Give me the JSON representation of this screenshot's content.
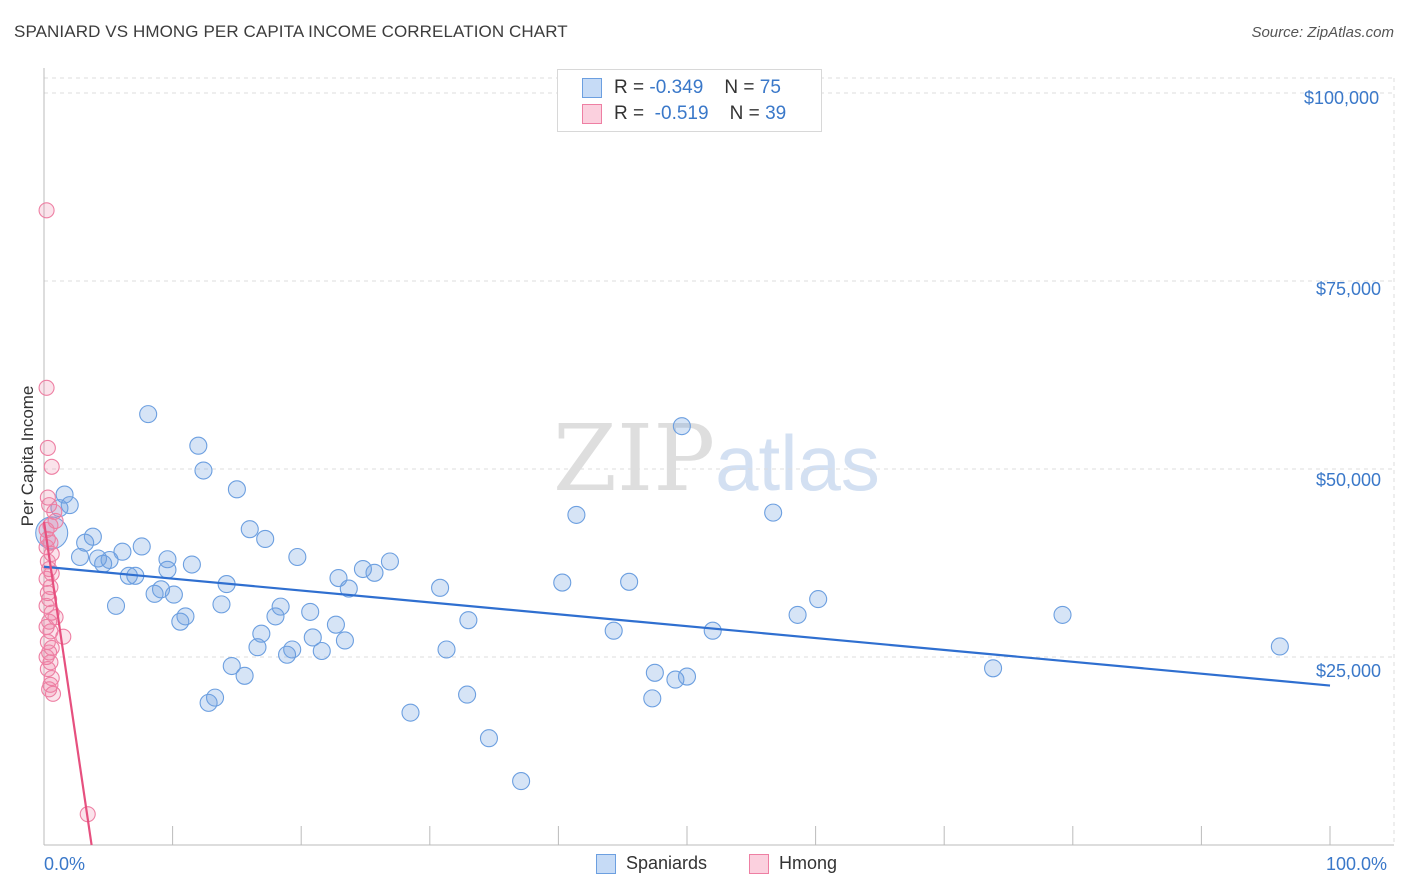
{
  "title": "SPANIARD VS HMONG PER CAPITA INCOME CORRELATION CHART",
  "source": "Source: ZipAtlas.com",
  "watermark": {
    "zip": "ZIP",
    "atlas": "atlas"
  },
  "legend_top": [
    {
      "r_label": "R =",
      "r_value": "-0.349",
      "n_label": "N =",
      "n_value": "75",
      "color": "#a9c8f0"
    },
    {
      "r_label": "R =",
      "r_value": "-0.519",
      "n_label": "N =",
      "n_value": "39",
      "color": "#f7b9cd"
    }
  ],
  "colors": {
    "spaniards": "#6c9fe0",
    "spaniards_line": "#2f6fd0",
    "hmong": "#ee7fa3",
    "hmong_line": "#e6507f",
    "axis_text": "#3a78c9",
    "grid": "#dddddd"
  },
  "chart_data": {
    "type": "scatter",
    "title": "SPANIARD VS HMONG PER CAPITA INCOME CORRELATION CHART",
    "xlabel": "",
    "ylabel": "Per Capita Income",
    "x_tick_labels": [
      "0.0%",
      "100.0%"
    ],
    "y_tick_labels": [
      "$25,000",
      "$50,000",
      "$75,000",
      "$100,000"
    ],
    "y_ticks": [
      25000,
      50000,
      75000,
      100000
    ],
    "xlim": [
      0,
      100
    ],
    "ylim": [
      0,
      102000
    ],
    "grid": true,
    "legend_position": "bottom",
    "series": [
      {
        "name": "Spaniards",
        "color": "#6c9fe0",
        "r": -0.349,
        "n": 75,
        "trend": {
          "x": [
            0,
            100
          ],
          "y": [
            37000,
            21200
          ]
        },
        "points": [
          [
            0.6,
            41500
          ],
          [
            1.2,
            44800
          ],
          [
            2.0,
            45200
          ],
          [
            2.8,
            38300
          ],
          [
            3.2,
            40200
          ],
          [
            3.8,
            41000
          ],
          [
            4.2,
            38100
          ],
          [
            4.6,
            37400
          ],
          [
            5.1,
            37900
          ],
          [
            5.6,
            31800
          ],
          [
            6.1,
            39000
          ],
          [
            6.6,
            35800
          ],
          [
            7.1,
            35800
          ],
          [
            7.6,
            39700
          ],
          [
            8.1,
            57300
          ],
          [
            8.6,
            33400
          ],
          [
            9.1,
            34000
          ],
          [
            9.6,
            38000
          ],
          [
            10.1,
            33300
          ],
          [
            10.6,
            29700
          ],
          [
            11.0,
            30400
          ],
          [
            11.5,
            37300
          ],
          [
            12.0,
            53100
          ],
          [
            12.4,
            49800
          ],
          [
            12.8,
            18900
          ],
          [
            13.3,
            19600
          ],
          [
            13.8,
            32000
          ],
          [
            14.2,
            34700
          ],
          [
            14.6,
            23800
          ],
          [
            15.0,
            47300
          ],
          [
            15.6,
            22500
          ],
          [
            16.0,
            42000
          ],
          [
            16.6,
            26300
          ],
          [
            16.9,
            28100
          ],
          [
            17.2,
            40700
          ],
          [
            18.0,
            30400
          ],
          [
            18.4,
            31700
          ],
          [
            18.9,
            25300
          ],
          [
            19.3,
            26000
          ],
          [
            19.7,
            38300
          ],
          [
            20.7,
            31000
          ],
          [
            20.9,
            27600
          ],
          [
            21.6,
            25800
          ],
          [
            22.7,
            29300
          ],
          [
            22.9,
            35500
          ],
          [
            23.4,
            27200
          ],
          [
            23.7,
            34100
          ],
          [
            24.8,
            36700
          ],
          [
            25.7,
            36200
          ],
          [
            26.9,
            37700
          ],
          [
            28.5,
            17600
          ],
          [
            30.8,
            34200
          ],
          [
            31.3,
            26000
          ],
          [
            32.9,
            20000
          ],
          [
            33.0,
            29900
          ],
          [
            34.6,
            14200
          ],
          [
            37.1,
            8500
          ],
          [
            40.3,
            34900
          ],
          [
            41.4,
            43900
          ],
          [
            44.3,
            28500
          ],
          [
            45.5,
            35000
          ],
          [
            47.5,
            22900
          ],
          [
            47.3,
            19500
          ],
          [
            49.1,
            22000
          ],
          [
            49.6,
            55700
          ],
          [
            50.0,
            22400
          ],
          [
            52.0,
            28500
          ],
          [
            56.7,
            44200
          ],
          [
            58.6,
            30600
          ],
          [
            60.2,
            32700
          ],
          [
            73.8,
            23500
          ],
          [
            79.2,
            30600
          ],
          [
            96.1,
            26400
          ],
          [
            1.6,
            46600
          ],
          [
            9.6,
            36600
          ]
        ]
      },
      {
        "name": "Hmong",
        "color": "#ee7fa3",
        "r": -0.519,
        "n": 39,
        "trend": {
          "x": [
            0,
            3.7
          ],
          "y": [
            43000,
            0
          ]
        },
        "points": [
          [
            0.2,
            84400
          ],
          [
            0.2,
            60800
          ],
          [
            0.3,
            52800
          ],
          [
            0.6,
            50300
          ],
          [
            0.3,
            46200
          ],
          [
            0.4,
            45200
          ],
          [
            0.8,
            44300
          ],
          [
            0.9,
            43100
          ],
          [
            0.5,
            42500
          ],
          [
            0.2,
            41900
          ],
          [
            0.3,
            40700
          ],
          [
            0.5,
            40200
          ],
          [
            0.2,
            39600
          ],
          [
            0.6,
            38700
          ],
          [
            0.3,
            37700
          ],
          [
            0.4,
            36700
          ],
          [
            0.6,
            36100
          ],
          [
            0.2,
            35400
          ],
          [
            0.5,
            34300
          ],
          [
            0.3,
            33500
          ],
          [
            0.4,
            32700
          ],
          [
            0.2,
            31800
          ],
          [
            0.6,
            30900
          ],
          [
            0.9,
            30300
          ],
          [
            0.4,
            29700
          ],
          [
            0.2,
            29000
          ],
          [
            0.5,
            28400
          ],
          [
            1.5,
            27700
          ],
          [
            0.3,
            27000
          ],
          [
            0.6,
            26200
          ],
          [
            0.4,
            25600
          ],
          [
            0.2,
            25000
          ],
          [
            0.5,
            24300
          ],
          [
            0.3,
            23400
          ],
          [
            0.6,
            22200
          ],
          [
            0.5,
            21300
          ],
          [
            0.4,
            20700
          ],
          [
            0.7,
            20100
          ],
          [
            3.4,
            4100
          ]
        ]
      }
    ]
  }
}
